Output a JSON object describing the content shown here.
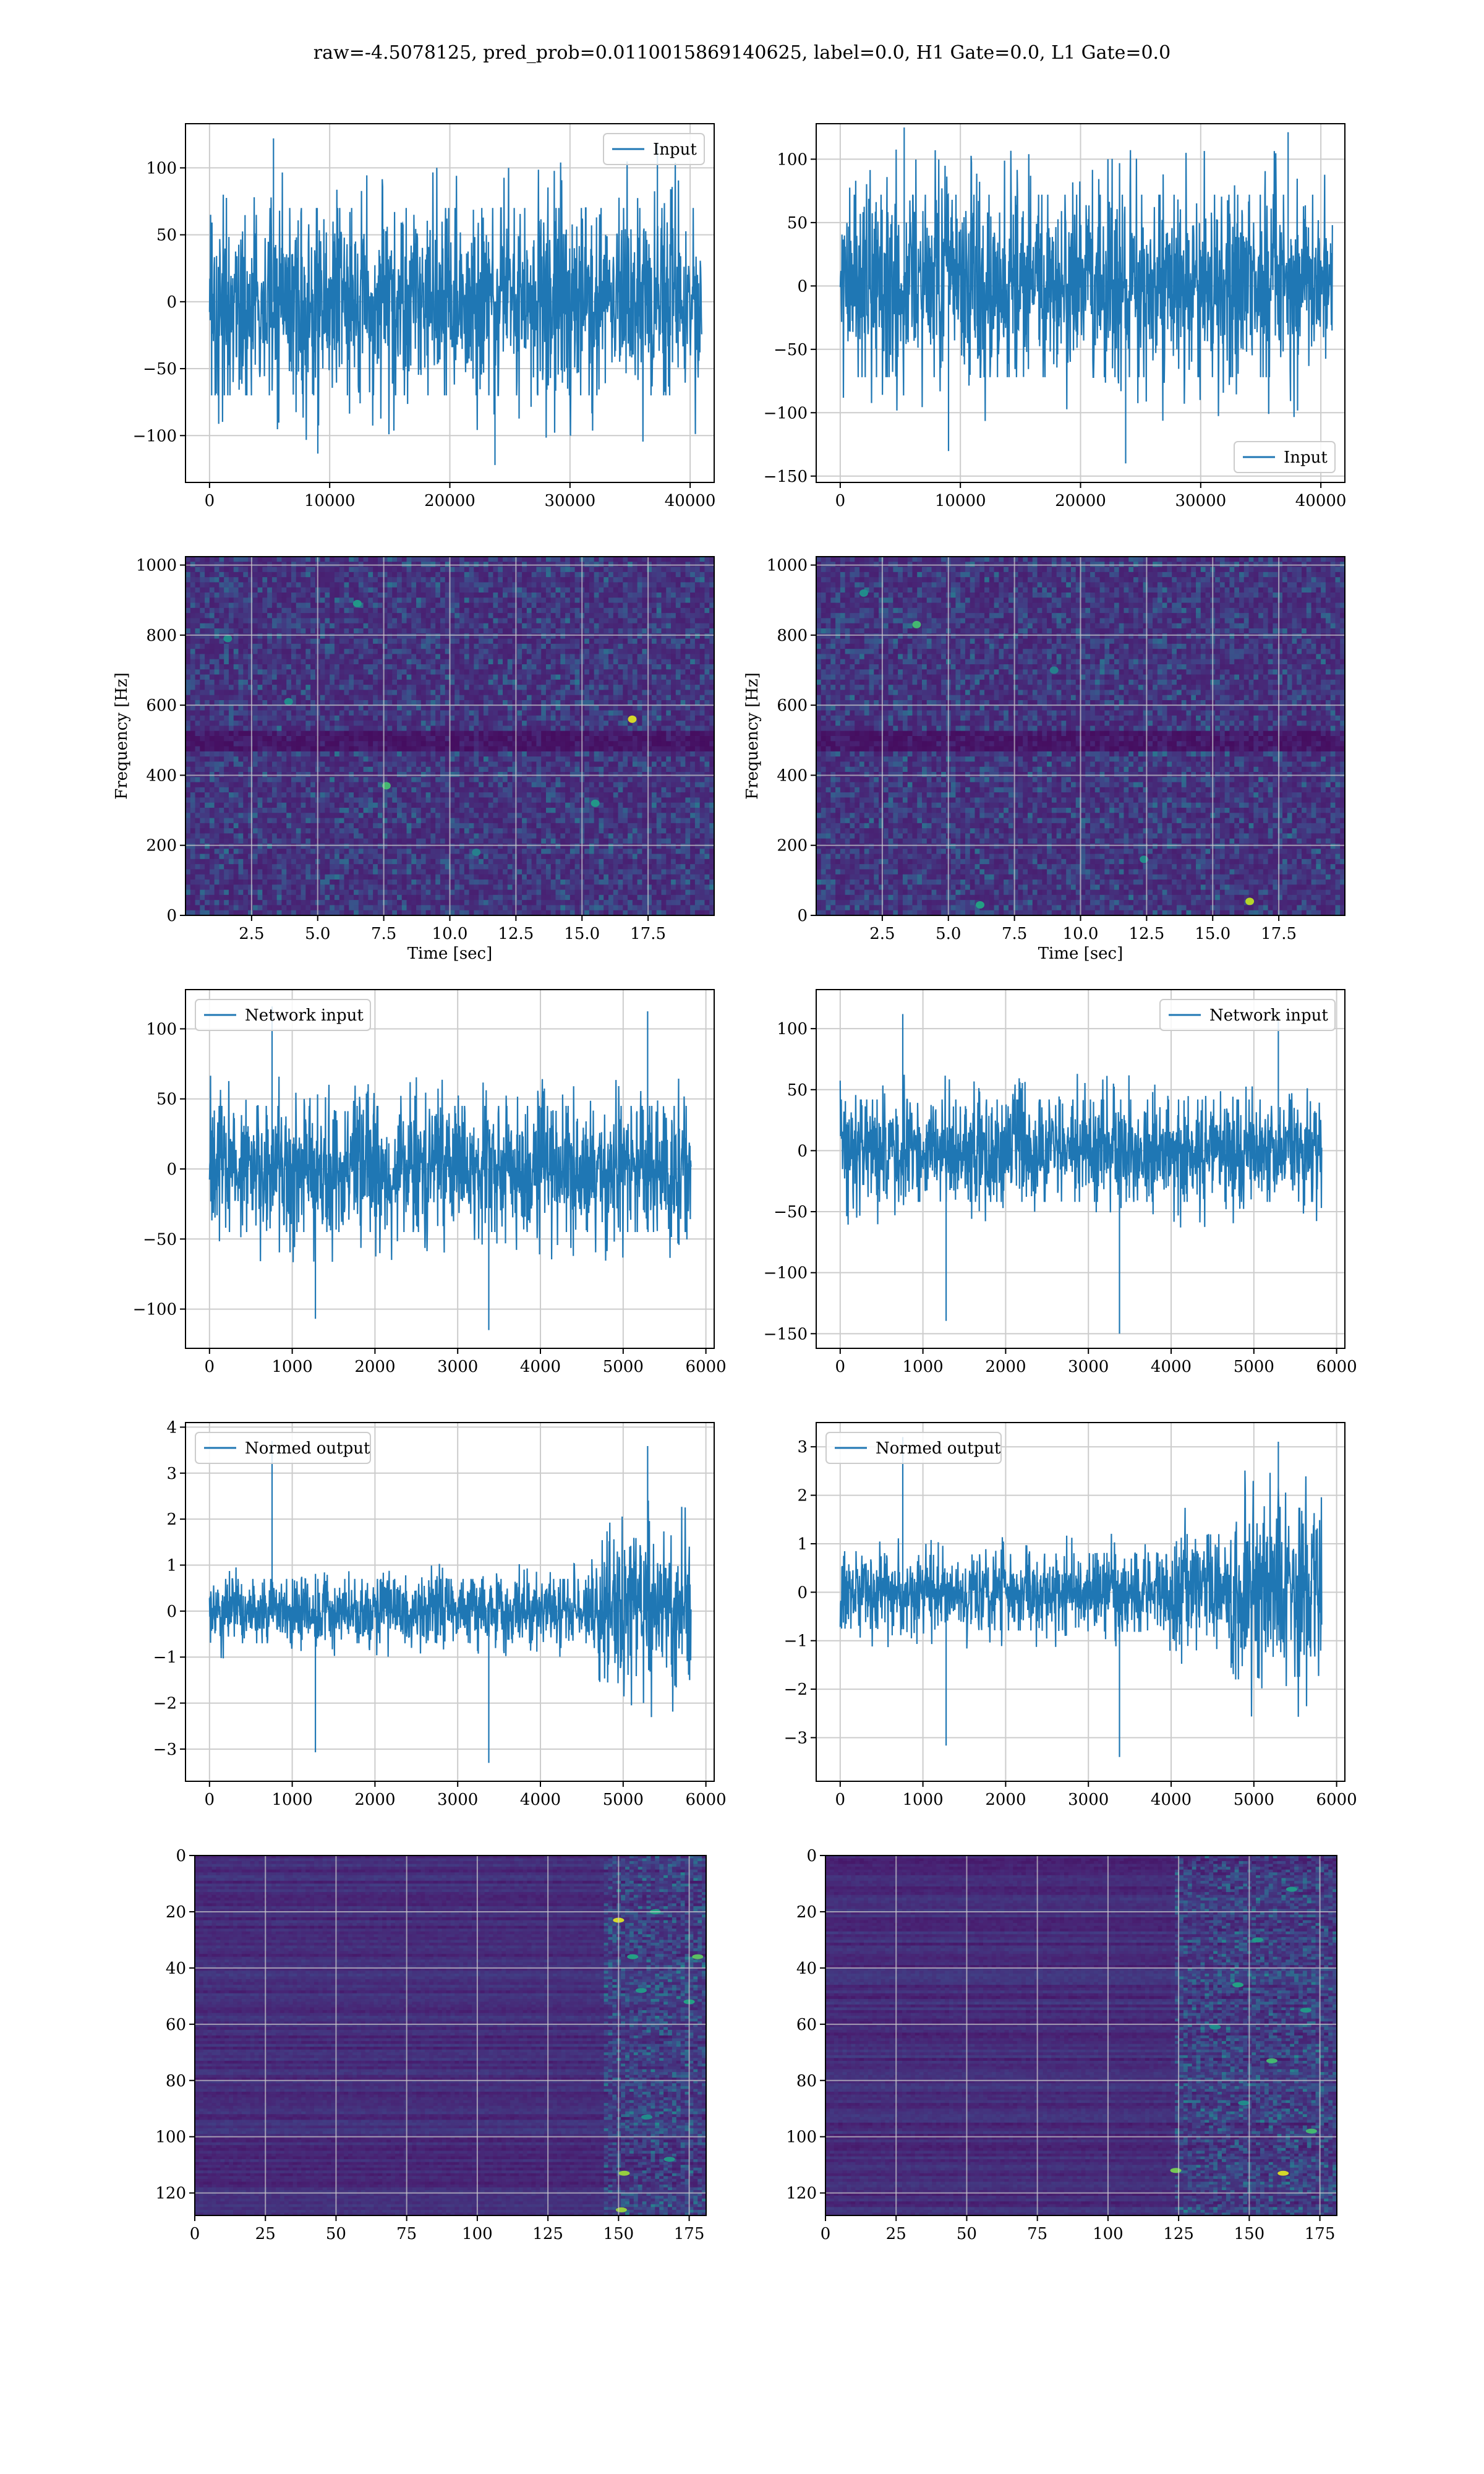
{
  "figure": {
    "suptitle": "raw=-4.5078125, pred_prob=0.0110015869140625, label=0.0, H1 Gate=0.0, L1 Gate=0.0"
  },
  "colors": {
    "series": "#1f77b4",
    "grid": "#cccccc",
    "viridis_dark": "#440154",
    "viridis_mid": "#21918c",
    "viridis_bright": "#fde725"
  },
  "chart_data": [
    {
      "id": "p00",
      "type": "line",
      "row": 0,
      "col": 0,
      "title": "",
      "xlabel": "",
      "ylabel": "",
      "xlim": [
        -2000,
        42000
      ],
      "ylim": [
        -135,
        133
      ],
      "xticks": [
        0,
        10000,
        20000,
        30000,
        40000
      ],
      "yticks": [
        -100,
        -50,
        0,
        50,
        100
      ],
      "legend": {
        "entries": [
          "Input"
        ],
        "loc": "upper right"
      },
      "series": [
        {
          "name": "Input",
          "x_range": [
            0,
            40960
          ],
          "mean": 0,
          "core_amplitude": 70,
          "spike_max": 122,
          "spike_min": -122,
          "envelope": [
            [
              0,
              1.0
            ],
            [
              1,
              1.0
            ]
          ]
        }
      ]
    },
    {
      "id": "p01",
      "type": "line",
      "row": 0,
      "col": 1,
      "title": "",
      "xlabel": "",
      "ylabel": "",
      "xlim": [
        -2000,
        42000
      ],
      "ylim": [
        -155,
        128
      ],
      "xticks": [
        0,
        10000,
        20000,
        30000,
        40000
      ],
      "yticks": [
        -150,
        -100,
        -50,
        0,
        50,
        100
      ],
      "legend": {
        "entries": [
          "Input"
        ],
        "loc": "lower right"
      },
      "series": [
        {
          "name": "Input",
          "x_range": [
            0,
            40960
          ],
          "mean": 0,
          "core_amplitude": 72,
          "spike_max": 125,
          "spike_min": -140,
          "envelope": [
            [
              0,
              1.0
            ],
            [
              1,
              1.0
            ]
          ]
        }
      ]
    },
    {
      "id": "p10",
      "type": "heatmap",
      "row": 1,
      "col": 0,
      "title": "",
      "xlabel": "Time [sec]",
      "ylabel": "Frequency [Hz]",
      "xlim": [
        0,
        20
      ],
      "ylim": [
        0,
        1024
      ],
      "xticks": [
        2.5,
        5.0,
        7.5,
        10.0,
        12.5,
        15.0,
        17.5
      ],
      "xticklabels": [
        "2.5",
        "5.0",
        "7.5",
        "10.0",
        "12.5",
        "15.0",
        "17.5"
      ],
      "yticks": [
        0,
        200,
        400,
        600,
        800,
        1000
      ],
      "colormap": "viridis",
      "grid": true,
      "background_level": 0.15,
      "noise_level": 0.3,
      "hot_spots": [
        [
          16.9,
          560,
          0.95
        ],
        [
          7.6,
          370,
          0.7
        ],
        [
          6.5,
          890,
          0.55
        ],
        [
          1.6,
          790,
          0.5
        ],
        [
          15.5,
          320,
          0.55
        ],
        [
          3.9,
          610,
          0.5
        ],
        [
          11.0,
          180,
          0.45
        ]
      ]
    },
    {
      "id": "p11",
      "type": "heatmap",
      "row": 1,
      "col": 1,
      "title": "",
      "xlabel": "Time [sec]",
      "ylabel": "Frequency [Hz]",
      "xlim": [
        0,
        20
      ],
      "ylim": [
        0,
        1024
      ],
      "xticks": [
        2.5,
        5.0,
        7.5,
        10.0,
        12.5,
        15.0,
        17.5
      ],
      "xticklabels": [
        "2.5",
        "5.0",
        "7.5",
        "10.0",
        "12.5",
        "15.0",
        "17.5"
      ],
      "yticks": [
        0,
        200,
        400,
        600,
        800,
        1000
      ],
      "colormap": "viridis",
      "grid": true,
      "background_level": 0.15,
      "noise_level": 0.3,
      "hot_spots": [
        [
          16.4,
          40,
          0.9
        ],
        [
          3.8,
          830,
          0.7
        ],
        [
          6.2,
          30,
          0.6
        ],
        [
          12.4,
          160,
          0.5
        ],
        [
          1.8,
          920,
          0.5
        ],
        [
          9.0,
          700,
          0.45
        ]
      ]
    },
    {
      "id": "p20",
      "type": "line",
      "row": 2,
      "col": 0,
      "title": "",
      "xlabel": "",
      "ylabel": "",
      "xlim": [
        -290,
        6100
      ],
      "ylim": [
        -128,
        128
      ],
      "xticks": [
        0,
        1000,
        2000,
        3000,
        4000,
        5000,
        6000
      ],
      "yticks": [
        -100,
        -50,
        0,
        50,
        100
      ],
      "legend": {
        "entries": [
          "Network input"
        ],
        "loc": "upper left"
      },
      "series": [
        {
          "name": "Network input",
          "x_range": [
            0,
            5820
          ],
          "mean": 0,
          "core_amplitude": 45,
          "spike_max": 116,
          "spike_min": -115,
          "envelope": [
            [
              0,
              1.0
            ],
            [
              1,
              1.0
            ]
          ]
        }
      ]
    },
    {
      "id": "p21",
      "type": "line",
      "row": 2,
      "col": 1,
      "title": "",
      "xlabel": "",
      "ylabel": "",
      "xlim": [
        -290,
        6100
      ],
      "ylim": [
        -162,
        132
      ],
      "xticks": [
        0,
        1000,
        2000,
        3000,
        4000,
        5000,
        6000
      ],
      "yticks": [
        -150,
        -100,
        -50,
        0,
        50,
        100
      ],
      "legend": {
        "entries": [
          "Network input"
        ],
        "loc": "upper right"
      },
      "series": [
        {
          "name": "Network input",
          "x_range": [
            0,
            5820
          ],
          "mean": 0,
          "core_amplitude": 42,
          "spike_max": 112,
          "spike_min": -150,
          "envelope": [
            [
              0,
              1.0
            ],
            [
              1,
              1.0
            ]
          ]
        }
      ]
    },
    {
      "id": "p30",
      "type": "line",
      "row": 3,
      "col": 0,
      "title": "",
      "xlabel": "",
      "ylabel": "",
      "xlim": [
        -290,
        6100
      ],
      "ylim": [
        -3.7,
        4.1
      ],
      "xticks": [
        0,
        1000,
        2000,
        3000,
        4000,
        5000,
        6000
      ],
      "yticks": [
        -3,
        -2,
        -1,
        0,
        1,
        2,
        3,
        4
      ],
      "legend": {
        "entries": [
          "Normed output"
        ],
        "loc": "upper left"
      },
      "series": [
        {
          "name": "Normed output",
          "x_range": [
            0,
            5820
          ],
          "mean": 0,
          "core_amplitude": 0.7,
          "spike_max": 3.7,
          "spike_min": -3.3,
          "envelope": [
            [
              0,
              1.0
            ],
            [
              0.79,
              1.0
            ],
            [
              0.81,
              2.2
            ],
            [
              1,
              2.4
            ]
          ]
        }
      ]
    },
    {
      "id": "p31",
      "type": "line",
      "row": 3,
      "col": 1,
      "title": "",
      "xlabel": "",
      "ylabel": "",
      "xlim": [
        -290,
        6100
      ],
      "ylim": [
        -3.9,
        3.5
      ],
      "xticks": [
        0,
        1000,
        2000,
        3000,
        4000,
        5000,
        6000
      ],
      "yticks": [
        -3,
        -2,
        -1,
        0,
        1,
        2,
        3
      ],
      "legend": {
        "entries": [
          "Normed output"
        ],
        "loc": "upper left"
      },
      "series": [
        {
          "name": "Normed output",
          "x_range": [
            0,
            5820
          ],
          "mean": 0,
          "core_amplitude": 0.75,
          "spike_max": 3.2,
          "spike_min": -3.4,
          "envelope": [
            [
              0,
              1.0
            ],
            [
              0.68,
              1.1
            ],
            [
              0.71,
              1.6
            ],
            [
              0.8,
              1.6
            ],
            [
              0.82,
              2.4
            ],
            [
              1,
              2.3
            ]
          ]
        }
      ]
    },
    {
      "id": "p40",
      "type": "heatmap",
      "row": 4,
      "col": 0,
      "title": "",
      "xlabel": "",
      "ylabel": "",
      "xlim": [
        0,
        181
      ],
      "ylim": [
        128,
        0
      ],
      "xticks": [
        0,
        25,
        50,
        75,
        100,
        125,
        150,
        175
      ],
      "yticks": [
        0,
        20,
        40,
        60,
        80,
        100,
        120
      ],
      "colormap": "viridis",
      "grid": true,
      "activity_start": 145,
      "background_level": 0.12,
      "noise_level": 0.25,
      "hot_spots": [
        [
          150,
          23,
          0.95
        ],
        [
          155,
          36,
          0.6
        ],
        [
          178,
          36,
          0.75
        ],
        [
          152,
          113,
          0.85
        ],
        [
          151,
          126,
          0.85
        ],
        [
          163,
          20,
          0.6
        ],
        [
          175,
          52,
          0.6
        ],
        [
          158,
          48,
          0.55
        ],
        [
          168,
          108,
          0.55
        ],
        [
          160,
          93,
          0.5
        ]
      ]
    },
    {
      "id": "p41",
      "type": "heatmap",
      "row": 4,
      "col": 1,
      "title": "",
      "xlabel": "",
      "ylabel": "",
      "xlim": [
        0,
        181
      ],
      "ylim": [
        128,
        0
      ],
      "xticks": [
        0,
        25,
        50,
        75,
        100,
        125,
        150,
        175
      ],
      "yticks": [
        0,
        20,
        40,
        60,
        80,
        100,
        120
      ],
      "colormap": "viridis",
      "grid": true,
      "activity_start": 124,
      "background_level": 0.12,
      "noise_level": 0.25,
      "hot_spots": [
        [
          162,
          113,
          0.95
        ],
        [
          124,
          112,
          0.8
        ],
        [
          172,
          98,
          0.7
        ],
        [
          158,
          73,
          0.7
        ],
        [
          146,
          46,
          0.6
        ],
        [
          165,
          12,
          0.55
        ],
        [
          153,
          30,
          0.55
        ],
        [
          138,
          61,
          0.5
        ],
        [
          170,
          55,
          0.55
        ],
        [
          148,
          88,
          0.5
        ]
      ]
    }
  ]
}
